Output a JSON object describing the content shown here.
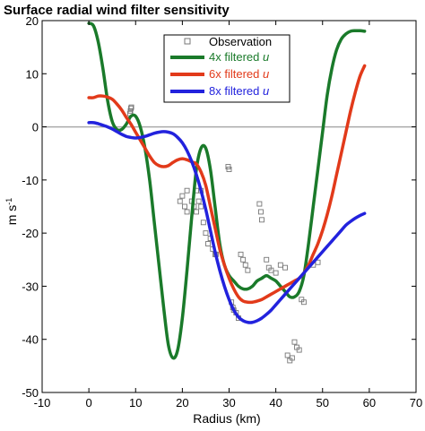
{
  "chart_data": {
    "type": "line",
    "title": "Surface radial wind filter sensitivity",
    "xlabel": "Radius (km)",
    "ylabel": "m s",
    "ylabel_sup": "-1",
    "xlim": [
      -10,
      70
    ],
    "ylim": [
      -50,
      20
    ],
    "xticks": [
      "-10",
      "0",
      "10",
      "20",
      "30",
      "40",
      "50",
      "60",
      "70"
    ],
    "yticks": [
      "20",
      "10",
      "0",
      "-10",
      "-20",
      "-30",
      "-40",
      "-50"
    ],
    "grid": false,
    "legend_position": "top-right",
    "series": [
      {
        "name_prefix": "4x filtered ",
        "name_var": "u",
        "color": "#1a7a2a",
        "x": [
          0,
          1,
          2,
          3,
          4,
          5,
          6,
          7,
          8,
          9,
          10,
          11,
          12,
          13,
          14,
          15,
          16,
          17,
          18,
          19,
          20,
          21,
          22,
          23,
          24,
          25,
          26,
          27,
          28,
          29,
          30,
          31,
          32,
          33,
          34,
          35,
          36,
          37,
          38,
          39,
          40,
          41,
          42,
          43,
          44,
          45,
          46,
          47,
          48,
          49,
          50,
          51,
          52,
          53,
          54,
          55,
          56,
          57,
          58,
          59
        ],
        "y": [
          19.5,
          19,
          16,
          11,
          5,
          1,
          -0.5,
          -0.5,
          0.5,
          2,
          2,
          0,
          -4,
          -10,
          -18,
          -26,
          -34,
          -41,
          -43.5,
          -42,
          -36,
          -27,
          -17,
          -8,
          -4,
          -4,
          -8,
          -15,
          -22,
          -26,
          -28,
          -29,
          -30,
          -30.5,
          -30.5,
          -30,
          -29,
          -28.5,
          -28,
          -28.5,
          -29,
          -30,
          -31,
          -32,
          -32,
          -31,
          -28,
          -22,
          -15,
          -8,
          -1,
          6,
          11,
          14.5,
          16.5,
          17.5,
          18,
          18.1,
          18.1,
          18
        ]
      },
      {
        "name_prefix": "6x filtered ",
        "name_var": "u",
        "color": "#e23a1a",
        "x": [
          0,
          1,
          2,
          3,
          4,
          5,
          6,
          7,
          8,
          9,
          10,
          11,
          12,
          13,
          14,
          15,
          16,
          17,
          18,
          19,
          20,
          21,
          22,
          23,
          24,
          25,
          26,
          27,
          28,
          29,
          30,
          31,
          32,
          33,
          34,
          35,
          36,
          37,
          38,
          39,
          40,
          41,
          42,
          43,
          44,
          45,
          46,
          47,
          48,
          49,
          50,
          51,
          52,
          53,
          54,
          55,
          56,
          57,
          58,
          59
        ],
        "y": [
          5.5,
          5.5,
          5.8,
          5.8,
          5.6,
          5.2,
          4.3,
          3.2,
          1.8,
          0.5,
          -1,
          -2.5,
          -4,
          -5.5,
          -6.7,
          -7.3,
          -7.5,
          -7.3,
          -6.7,
          -6.2,
          -6,
          -6.2,
          -6.6,
          -7,
          -8.5,
          -11,
          -15,
          -19,
          -23,
          -26,
          -28.5,
          -30.5,
          -32,
          -32.8,
          -33,
          -33,
          -32.8,
          -32.5,
          -32,
          -31.5,
          -31,
          -30.5,
          -30,
          -29.5,
          -29,
          -28.5,
          -27.5,
          -26,
          -24,
          -22,
          -19.5,
          -16.5,
          -13,
          -9,
          -5,
          -1,
          3,
          6.5,
          9.5,
          11.5
        ]
      },
      {
        "name_prefix": "8x filtered ",
        "name_var": "u",
        "color": "#2222dd",
        "x": [
          0,
          1,
          2,
          3,
          4,
          5,
          6,
          7,
          8,
          9,
          10,
          11,
          12,
          13,
          14,
          15,
          16,
          17,
          18,
          19,
          20,
          21,
          22,
          23,
          24,
          25,
          26,
          27,
          28,
          29,
          30,
          31,
          32,
          33,
          34,
          35,
          36,
          37,
          38,
          39,
          40,
          41,
          42,
          43,
          44,
          45,
          46,
          47,
          48,
          49,
          50,
          51,
          52,
          53,
          54,
          55,
          56,
          57,
          58,
          59
        ],
        "y": [
          0.8,
          0.8,
          0.6,
          0.3,
          0,
          -0.4,
          -0.9,
          -1.4,
          -1.8,
          -2,
          -2.1,
          -2,
          -1.8,
          -1.5,
          -1.2,
          -1,
          -0.9,
          -1,
          -1.3,
          -2,
          -3,
          -4.5,
          -6.5,
          -9,
          -12,
          -15.5,
          -19.5,
          -23.5,
          -27,
          -30,
          -32.5,
          -34.5,
          -35.8,
          -36.5,
          -36.8,
          -36.8,
          -36.5,
          -36,
          -35.3,
          -34.5,
          -33.5,
          -32.5,
          -31.5,
          -30.5,
          -29.5,
          -28.5,
          -27.5,
          -26.5,
          -25.5,
          -24.5,
          -23.5,
          -22.5,
          -21.5,
          -20.5,
          -19.5,
          -18.5,
          -17.8,
          -17.2,
          -16.7,
          -16.3
        ]
      }
    ],
    "observations": {
      "name": "Observation",
      "color": "#777777",
      "x": [
        8.8,
        8.9,
        9.0,
        9.1,
        19.5,
        20,
        20.5,
        21,
        21,
        22,
        22.5,
        23,
        23,
        23.5,
        24,
        24,
        24.5,
        25,
        25.5,
        26,
        26.5,
        27,
        27.2,
        29.8,
        30,
        30.5,
        30.8,
        31,
        31.5,
        32,
        32.5,
        33,
        33.5,
        34,
        36.5,
        36.8,
        37,
        38,
        38.5,
        39,
        40,
        41,
        42,
        42.5,
        43,
        43.5,
        44,
        44.5,
        45,
        45.5,
        46,
        48,
        49
      ],
      "y": [
        2.5,
        3,
        3.5,
        3.7,
        -14,
        -13,
        -15,
        -16,
        -12,
        -14,
        -15,
        -16,
        -12,
        -14,
        -15,
        -12,
        -18,
        -20,
        -22,
        -21,
        -23,
        -24,
        -24,
        -7.5,
        -8,
        -33,
        -34,
        -34.5,
        -35,
        -36,
        -24,
        -25,
        -26,
        -27,
        -14.5,
        -16,
        -17.5,
        -25,
        -26.5,
        -27,
        -27.5,
        -26,
        -26.5,
        -43,
        -44,
        -43.5,
        -40.5,
        -41.5,
        -42,
        -32.5,
        -33,
        -26,
        -25.5
      ]
    },
    "zero_line": true
  }
}
